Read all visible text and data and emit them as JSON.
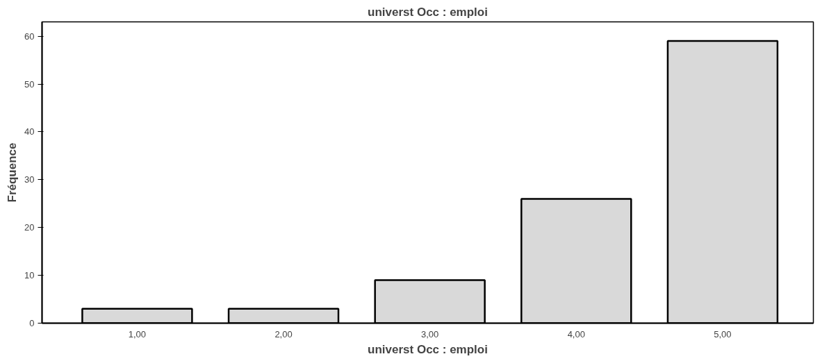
{
  "chart_data": {
    "type": "bar",
    "title": "universt Occ : emploi",
    "xlabel": "universt Occ : emploi",
    "ylabel": "Fréquence",
    "categories": [
      "1,00",
      "2,00",
      "3,00",
      "4,00",
      "5,00"
    ],
    "values": [
      3,
      3,
      9,
      26,
      59
    ],
    "color": "#d9d9d9",
    "ylim": [
      0,
      63
    ],
    "yticks": [
      0,
      10,
      20,
      30,
      40,
      50,
      60
    ],
    "grid": false
  }
}
